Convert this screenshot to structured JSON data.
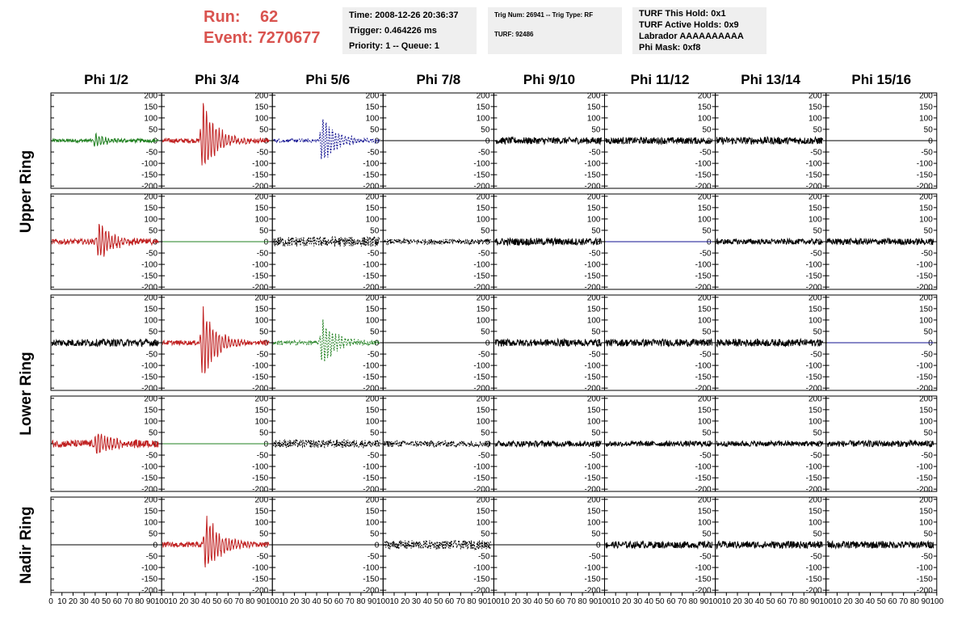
{
  "header": {
    "run_label": "Run:",
    "run_value": "62",
    "event_label": "Event:",
    "event_value": "7270677",
    "accent_color": "#d9534f"
  },
  "info_panels": {
    "time": "Time: 2008-12-26 20:36:37",
    "trigger": "Trigger: 0.464226 ms",
    "priority": "Priority: 1 -- Queue: 1",
    "trig_num": "Trig Num: 26941 -- Trig Type: RF",
    "turf": "TURF: 92486",
    "turf_hold": "TURF This Hold: 0x1",
    "turf_active": "TURF Active Holds: 0x9",
    "labrador": "Labrador AAAAAAAAAA",
    "phi_mask": "Phi Mask: 0xf8"
  },
  "chart_data": {
    "type": "line",
    "columns": [
      "Phi 1/2",
      "Phi 3/4",
      "Phi 5/6",
      "Phi 7/8",
      "Phi 9/10",
      "Phi 11/12",
      "Phi 13/14",
      "Phi 15/16"
    ],
    "ring_labels": [
      {
        "text": "Upper Ring",
        "rows": [
          0,
          1
        ]
      },
      {
        "text": "Lower Ring",
        "rows": [
          2,
          3
        ]
      },
      {
        "text": "Nadir Ring",
        "rows": [
          4
        ]
      }
    ],
    "ylim": [
      -210,
      210
    ],
    "yticks": [
      -200,
      -150,
      -100,
      -50,
      0,
      50,
      100,
      150,
      200
    ],
    "xlim": [
      0,
      100
    ],
    "xticks": [
      0,
      10,
      20,
      30,
      40,
      50,
      60,
      70,
      80,
      90,
      100
    ],
    "colors": {
      "red": "#c02020",
      "green": "#208020",
      "blue": "#101090",
      "black": "#000000"
    },
    "panels": [
      [
        {
          "c": "green",
          "m": "pulse",
          "a": 30,
          "n": 8,
          "p": 40
        },
        {
          "c": "red",
          "m": "pulse",
          "a": 190,
          "n": 10,
          "p": 37
        },
        {
          "c": "blue",
          "m": "pulse",
          "a": 130,
          "n": 8,
          "p": 45,
          "d": 1
        },
        {
          "c": "black",
          "m": "flat"
        },
        {
          "c": "black",
          "m": "noise",
          "n": 15
        },
        {
          "c": "black",
          "m": "noise",
          "n": 15
        },
        {
          "c": "black",
          "m": "noise",
          "n": 16
        },
        {
          "c": "black",
          "m": "flat"
        }
      ],
      [
        {
          "c": "red",
          "m": "pulse",
          "a": 95,
          "n": 12,
          "p": 43
        },
        {
          "c": "green",
          "m": "flat"
        },
        {
          "c": "black",
          "m": "noise",
          "n": 22,
          "d": 1
        },
        {
          "c": "black",
          "m": "noise",
          "n": 12,
          "d": 1
        },
        {
          "c": "black",
          "m": "noise",
          "n": 16
        },
        {
          "c": "blue",
          "m": "flat"
        },
        {
          "c": "black",
          "m": "noise",
          "n": 12
        },
        {
          "c": "black",
          "m": "noise",
          "n": 14
        }
      ],
      [
        {
          "c": "black",
          "m": "noise",
          "n": 16
        },
        {
          "c": "red",
          "m": "pulse",
          "a": 180,
          "n": 10,
          "p": 37
        },
        {
          "c": "green",
          "m": "pulse",
          "a": 115,
          "n": 10,
          "p": 45,
          "d": 1
        },
        {
          "c": "black",
          "m": "flat"
        },
        {
          "c": "black",
          "m": "noise",
          "n": 16
        },
        {
          "c": "black",
          "m": "noise",
          "n": 16
        },
        {
          "c": "black",
          "m": "noise",
          "n": 16
        },
        {
          "c": "blue",
          "m": "flat"
        }
      ],
      [
        {
          "c": "red",
          "m": "pulse",
          "a": 60,
          "n": 16,
          "p": 42
        },
        {
          "c": "green",
          "m": "flat"
        },
        {
          "c": "black",
          "m": "noise",
          "n": 18,
          "d": 1
        },
        {
          "c": "black",
          "m": "noise",
          "n": 14,
          "d": 1
        },
        {
          "c": "black",
          "m": "noise",
          "n": 13
        },
        {
          "c": "black",
          "m": "noise",
          "n": 12
        },
        {
          "c": "black",
          "m": "noise",
          "n": 12
        },
        {
          "c": "black",
          "m": "noise",
          "n": 14
        }
      ],
      [
        {
          "c": "black",
          "m": "flat"
        },
        {
          "c": "red",
          "m": "pulse",
          "a": 150,
          "n": 12,
          "p": 40
        },
        {
          "c": "black",
          "m": "flat"
        },
        {
          "c": "black",
          "m": "noise",
          "n": 20,
          "d": 1
        },
        {
          "c": "black",
          "m": "flat"
        },
        {
          "c": "black",
          "m": "noise",
          "n": 15
        },
        {
          "c": "black",
          "m": "noise",
          "n": 16
        },
        {
          "c": "black",
          "m": "noise",
          "n": 16
        }
      ]
    ]
  }
}
